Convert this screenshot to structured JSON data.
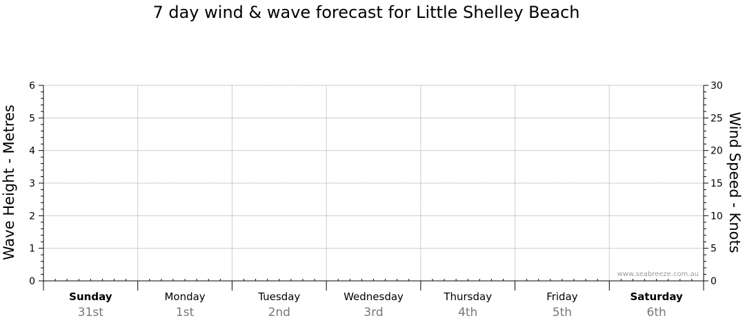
{
  "chart_data": {
    "type": "line",
    "title": "7 day wind & wave forecast for Little Shelley Beach",
    "ylabel_left": "Wave Height - Metres",
    "ylabel_right": "Wind Speed - Knots",
    "ylim_left": [
      0,
      6
    ],
    "yticks_left": [
      "0",
      "1",
      "2",
      "3",
      "4",
      "5",
      "6"
    ],
    "ylim_right": [
      0,
      30
    ],
    "yticks_right": [
      "0",
      "5",
      "10",
      "15",
      "20",
      "25",
      "30"
    ],
    "days": [
      {
        "name": "Sunday",
        "date": "31st",
        "bold": true
      },
      {
        "name": "Monday",
        "date": "1st",
        "bold": false
      },
      {
        "name": "Tuesday",
        "date": "2nd",
        "bold": false
      },
      {
        "name": "Wednesday",
        "date": "3rd",
        "bold": false
      },
      {
        "name": "Thursday",
        "date": "4th",
        "bold": false
      },
      {
        "name": "Friday",
        "date": "5th",
        "bold": false
      },
      {
        "name": "Saturday",
        "date": "6th",
        "bold": true
      }
    ],
    "series": [],
    "grid": true,
    "watermark": "www.seabreeze.com.au",
    "colors": {
      "grid": "#9a9a9a",
      "axis": "#000000",
      "date_text": "#777777",
      "watermark": "#9a9a9a"
    }
  }
}
